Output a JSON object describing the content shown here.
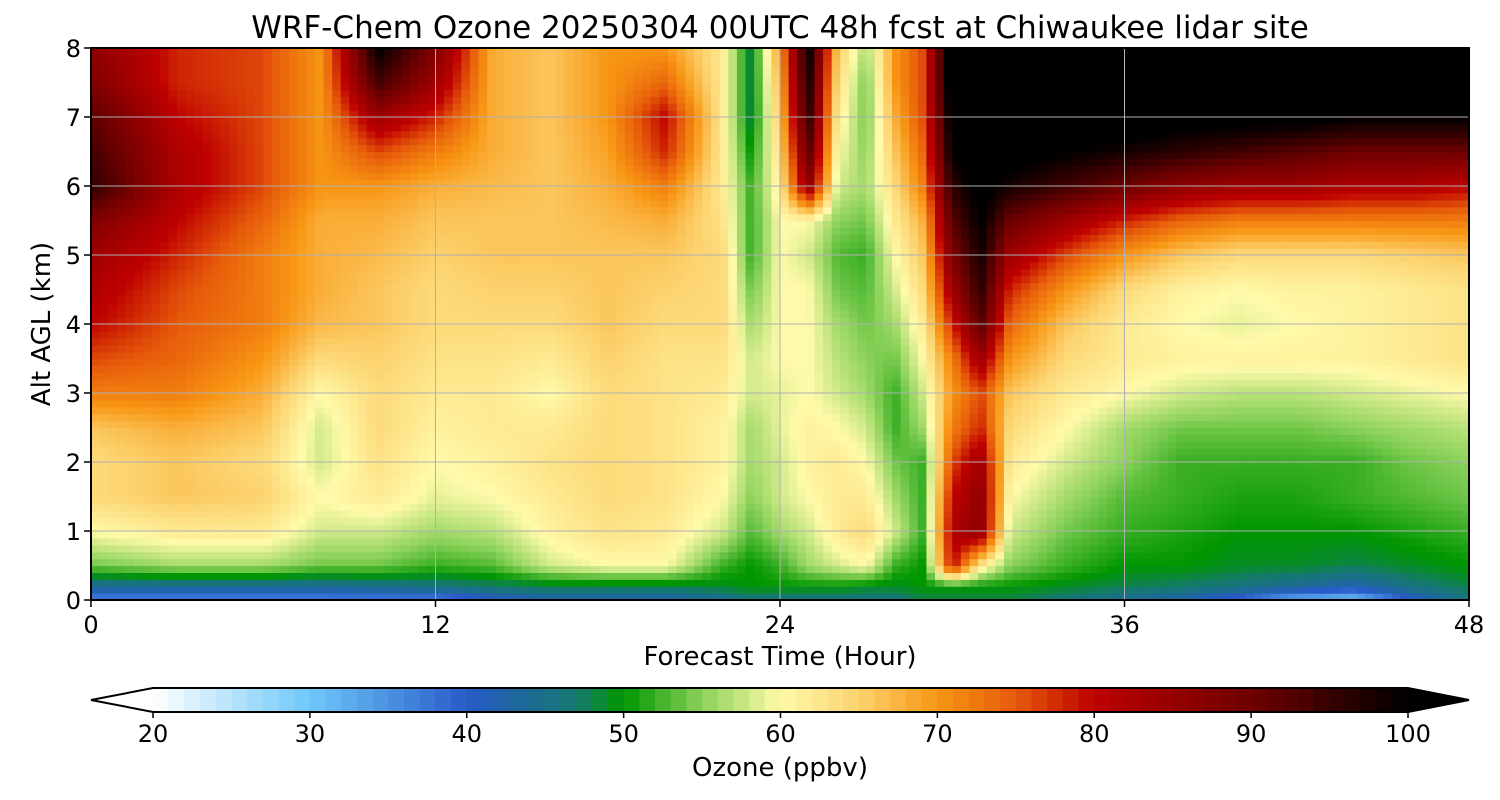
{
  "chart_data": {
    "type": "heatmap",
    "title": "WRF-Chem Ozone  20250304 00UTC 48h fcst at Chiwaukee lidar site",
    "xlabel": "Forecast Time (Hour)",
    "ylabel": "Alt AGL (km)",
    "xlim": [
      0,
      48
    ],
    "ylim": [
      0,
      8
    ],
    "x_ticks": [
      "0",
      "12",
      "24",
      "36",
      "48"
    ],
    "y_ticks": [
      "0",
      "1",
      "2",
      "3",
      "4",
      "5",
      "6",
      "7",
      "8"
    ],
    "grid": true,
    "colorbar": {
      "label": "Ozone  (ppbv)",
      "range": [
        20,
        100
      ],
      "extend": "both",
      "ticks": [
        "20",
        "30",
        "40",
        "50",
        "60",
        "70",
        "80",
        "90",
        "100"
      ]
    },
    "x": [
      0,
      3,
      6,
      8,
      10,
      12,
      14,
      16,
      18,
      20,
      22,
      23,
      24,
      25,
      26,
      27,
      28,
      29,
      30,
      31,
      32,
      34,
      36,
      38,
      40,
      42,
      44,
      46,
      48
    ],
    "y": [
      0,
      0.2,
      0.5,
      1,
      1.5,
      2,
      2.5,
      3,
      3.5,
      4,
      4.5,
      5,
      5.5,
      6,
      6.5,
      7,
      7.5,
      8
    ],
    "z": [
      [
        36,
        36,
        36,
        36,
        36,
        36,
        40,
        42,
        42,
        42,
        44,
        46,
        46,
        46,
        46,
        46,
        46,
        48,
        48,
        48,
        48,
        46,
        44,
        42,
        38,
        32,
        30,
        40,
        46
      ],
      [
        44,
        44,
        44,
        44,
        45,
        46,
        47,
        48,
        48,
        48,
        49,
        50,
        50,
        50,
        50,
        49,
        49,
        50,
        50,
        50,
        50,
        49,
        48,
        47,
        46,
        44,
        42,
        46,
        48
      ],
      [
        54,
        56,
        56,
        54,
        54,
        52,
        53,
        58,
        60,
        60,
        52,
        50,
        52,
        56,
        58,
        60,
        52,
        50,
        80,
        62,
        55,
        52,
        50,
        50,
        49,
        49,
        48,
        49,
        50
      ],
      [
        60,
        62,
        62,
        58,
        58,
        56,
        57,
        61,
        63,
        62,
        58,
        53,
        56,
        58,
        62,
        64,
        58,
        52,
        82,
        86,
        58,
        54,
        52,
        51,
        50,
        50,
        50,
        51,
        52
      ],
      [
        64,
        66,
        65,
        60,
        62,
        59,
        60,
        62,
        64,
        63,
        60,
        55,
        58,
        60,
        62,
        62,
        56,
        52,
        80,
        86,
        60,
        56,
        53,
        52,
        51,
        51,
        52,
        53,
        54
      ],
      [
        64,
        66,
        64,
        58,
        63,
        60,
        61,
        63,
        64,
        63,
        61,
        56,
        58,
        61,
        62,
        60,
        54,
        52,
        76,
        84,
        62,
        58,
        55,
        52,
        52,
        52,
        52,
        54,
        55
      ],
      [
        66,
        68,
        66,
        58,
        64,
        61,
        62,
        62,
        64,
        63,
        61,
        56,
        59,
        61,
        60,
        58,
        52,
        56,
        72,
        78,
        64,
        60,
        56,
        54,
        54,
        54,
        55,
        56,
        57
      ],
      [
        72,
        72,
        68,
        60,
        64,
        62,
        62,
        60,
        64,
        63,
        62,
        58,
        59,
        60,
        58,
        56,
        52,
        58,
        70,
        76,
        66,
        62,
        60,
        58,
        57,
        57,
        58,
        59,
        60
      ],
      [
        76,
        74,
        70,
        64,
        65,
        63,
        63,
        62,
        65,
        63,
        63,
        58,
        60,
        60,
        57,
        55,
        54,
        60,
        72,
        84,
        70,
        64,
        62,
        61,
        61,
        61,
        61,
        62,
        63
      ],
      [
        80,
        75,
        72,
        67,
        66,
        64,
        64,
        64,
        66,
        64,
        64,
        56,
        60,
        60,
        56,
        54,
        56,
        62,
        78,
        92,
        74,
        66,
        62,
        60,
        59,
        60,
        61,
        62,
        63
      ],
      [
        82,
        76,
        72,
        68,
        66,
        64,
        65,
        65,
        66,
        65,
        64,
        54,
        60,
        60,
        54,
        53,
        58,
        64,
        84,
        96,
        78,
        70,
        64,
        61,
        60,
        61,
        61,
        62,
        63
      ],
      [
        84,
        78,
        72,
        68,
        67,
        65,
        66,
        66,
        66,
        66,
        64,
        52,
        60,
        58,
        53,
        52,
        60,
        66,
        88,
        98,
        84,
        76,
        70,
        66,
        64,
        64,
        64,
        65,
        66
      ],
      [
        88,
        80,
        74,
        68,
        68,
        66,
        66,
        66,
        67,
        68,
        63,
        52,
        60,
        60,
        55,
        54,
        62,
        68,
        92,
        100,
        90,
        84,
        78,
        74,
        72,
        72,
        72,
        72,
        72
      ],
      [
        96,
        82,
        76,
        70,
        70,
        68,
        67,
        66,
        68,
        72,
        62,
        52,
        62,
        86,
        58,
        56,
        64,
        72,
        96,
        102,
        98,
        94,
        90,
        86,
        84,
        84,
        82,
        82,
        80
      ],
      [
        94,
        82,
        76,
        70,
        76,
        72,
        68,
        66,
        69,
        78,
        62,
        50,
        64,
        92,
        60,
        55,
        66,
        74,
        100,
        104,
        102,
        100,
        98,
        96,
        94,
        92,
        90,
        90,
        90
      ],
      [
        92,
        80,
        76,
        70,
        84,
        78,
        68,
        66,
        70,
        80,
        62,
        48,
        66,
        96,
        62,
        54,
        68,
        76,
        102,
        106,
        104,
        104,
        104,
        102,
        102,
        102,
        100,
        100,
        100
      ],
      [
        88,
        78,
        76,
        70,
        94,
        84,
        68,
        66,
        70,
        74,
        62,
        48,
        68,
        98,
        64,
        54,
        70,
        76,
        104,
        108,
        106,
        106,
        106,
        106,
        106,
        106,
        106,
        106,
        106
      ],
      [
        86,
        78,
        76,
        70,
        100,
        88,
        68,
        66,
        70,
        70,
        62,
        48,
        70,
        100,
        66,
        56,
        70,
        76,
        104,
        108,
        108,
        108,
        108,
        108,
        108,
        108,
        108,
        108,
        108
      ]
    ]
  }
}
